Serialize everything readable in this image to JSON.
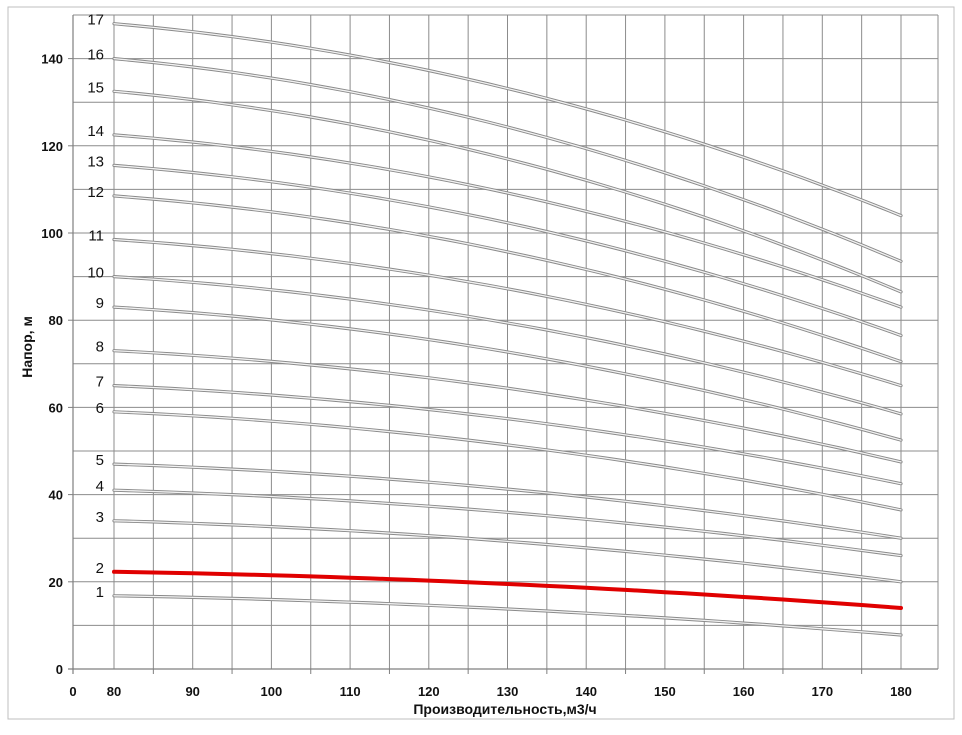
{
  "chart_data": {
    "type": "line",
    "xlabel": "Производительность,м3/ч",
    "ylabel": "Напор, м",
    "xlim": [
      0,
      180
    ],
    "ylim": [
      0,
      150
    ],
    "x_ticks": [
      "0",
      "80",
      "90",
      "100",
      "110",
      "120",
      "130",
      "140",
      "150",
      "160",
      "170",
      "180"
    ],
    "y_ticks": [
      "0",
      "20",
      "40",
      "60",
      "80",
      "100",
      "120",
      "140"
    ],
    "grid": true,
    "highlight_color": "#e00000",
    "line_color": "#8a8a8a",
    "x": [
      80,
      180
    ],
    "series": [
      {
        "label": "1",
        "start": 16.8,
        "end": 7.8,
        "highlight": false
      },
      {
        "label": "2",
        "start": 22.3,
        "end": 14.0,
        "highlight": true
      },
      {
        "label": "3",
        "start": 34.0,
        "end": 20.0,
        "highlight": false
      },
      {
        "label": "4",
        "start": 41.0,
        "end": 26.0,
        "highlight": false
      },
      {
        "label": "5",
        "start": 47.0,
        "end": 30.0,
        "highlight": false
      },
      {
        "label": "6",
        "start": 59.0,
        "end": 36.5,
        "highlight": false
      },
      {
        "label": "7",
        "start": 65.0,
        "end": 42.5,
        "highlight": false
      },
      {
        "label": "8",
        "start": 73.0,
        "end": 47.5,
        "highlight": false
      },
      {
        "label": "9",
        "start": 83.0,
        "end": 52.5,
        "highlight": false
      },
      {
        "label": "10",
        "start": 90.0,
        "end": 58.5,
        "highlight": false
      },
      {
        "label": "11",
        "start": 98.5,
        "end": 65.0,
        "highlight": false
      },
      {
        "label": "12",
        "start": 108.5,
        "end": 70.5,
        "highlight": false
      },
      {
        "label": "13",
        "start": 115.5,
        "end": 76.5,
        "highlight": false
      },
      {
        "label": "14",
        "start": 122.5,
        "end": 83.0,
        "highlight": false
      },
      {
        "label": "15",
        "start": 132.5,
        "end": 86.5,
        "highlight": false
      },
      {
        "label": "16",
        "start": 140.0,
        "end": 93.5,
        "highlight": false
      },
      {
        "label": "17",
        "start": 148.0,
        "end": 104.0,
        "highlight": false
      }
    ]
  }
}
